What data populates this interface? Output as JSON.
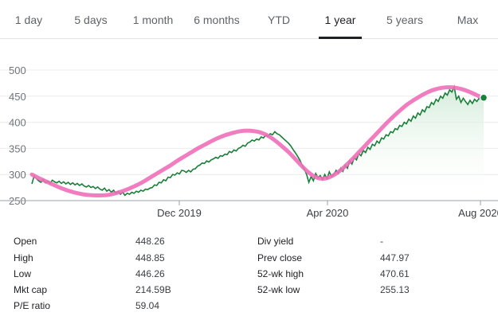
{
  "tabs": [
    {
      "label": "1 day",
      "active": false
    },
    {
      "label": "5 days",
      "active": false
    },
    {
      "label": "1 month",
      "active": false
    },
    {
      "label": "6 months",
      "active": false
    },
    {
      "label": "YTD",
      "active": false
    },
    {
      "label": "1 year",
      "active": true
    },
    {
      "label": "5 years",
      "active": false
    },
    {
      "label": "Max",
      "active": false
    }
  ],
  "chart_data": {
    "type": "line",
    "x_tick_labels": [
      "Dec 2019",
      "Apr 2020",
      "Aug 2020"
    ],
    "y_ticks": [
      250,
      300,
      350,
      400,
      450,
      500
    ],
    "ylim": [
      250,
      500
    ],
    "grid": true,
    "line_color": "#188038",
    "fill_color": "#e6f4ea",
    "overlay_color": "#f06eb8",
    "series": [
      {
        "values": [
          282,
          297,
          292,
          288,
          285,
          291,
          284,
          287,
          283,
          289,
          286,
          284,
          287,
          283,
          286,
          282,
          285,
          281,
          284,
          280,
          283,
          279,
          282,
          278,
          276,
          279,
          275,
          277,
          273,
          276,
          272,
          270,
          274,
          268,
          271,
          266,
          270,
          264,
          268,
          262,
          266,
          260,
          264,
          262,
          266,
          264,
          268,
          266,
          270,
          268,
          272,
          271,
          274,
          275,
          280,
          279,
          285,
          284,
          290,
          288,
          295,
          294,
          300,
          299,
          303,
          301,
          308,
          307,
          304,
          308,
          305,
          310,
          311,
          316,
          318,
          322,
          321,
          326,
          324,
          328,
          330,
          333,
          331,
          336,
          335,
          339,
          338,
          344,
          342,
          347,
          345,
          350,
          352,
          356,
          354,
          360,
          362,
          366,
          364,
          368,
          366,
          372,
          370,
          375,
          373,
          378,
          376,
          382,
          378,
          376,
          372,
          368,
          364,
          360,
          355,
          348,
          342,
          335,
          328,
          318,
          310,
          300,
          285,
          296,
          288,
          302,
          294,
          298,
          290,
          300,
          292,
          305,
          296,
          300,
          308,
          302,
          312,
          306,
          318,
          312,
          326,
          320,
          332,
          328,
          340,
          336,
          346,
          342,
          352,
          348,
          358,
          355,
          364,
          360,
          370,
          368,
          376,
          374,
          382,
          380,
          388,
          386,
          394,
          392,
          400,
          397,
          406,
          402,
          412,
          408,
          418,
          414,
          424,
          420,
          430,
          428,
          438,
          434,
          444,
          440,
          450,
          446,
          456,
          452,
          462,
          458,
          468,
          444,
          450,
          438,
          446,
          440,
          434,
          442,
          436,
          444,
          440,
          446,
          442,
          447
        ]
      },
      {
        "values": [
          300,
          293,
          287,
          281,
          275,
          270,
          266,
          263,
          261,
          260,
          260,
          261,
          264,
          268,
          273,
          279,
          286,
          294,
          302,
          310,
          318,
          327,
          335,
          343,
          351,
          358,
          365,
          371,
          376,
          380,
          383,
          384,
          383,
          380,
          374,
          365,
          354,
          342,
          328,
          314,
          302,
          294,
          292,
          296,
          304,
          315,
          328,
          342,
          356,
          370,
          384,
          398,
          411,
          423,
          434,
          443,
          451,
          458,
          463,
          466,
          467,
          466,
          463,
          458,
          452,
          446
        ]
      }
    ]
  },
  "stats": {
    "open_label": "Open",
    "open_value": "448.26",
    "high_label": "High",
    "high_value": "448.85",
    "low_label": "Low",
    "low_value": "446.26",
    "mktcap_label": "Mkt cap",
    "mktcap_value": "214.59B",
    "pe_label": "P/E ratio",
    "pe_value": "59.04",
    "divyield_label": "Div yield",
    "divyield_value": "-",
    "prevclose_label": "Prev close",
    "prevclose_value": "447.97",
    "wkhigh_label": "52-wk high",
    "wkhigh_value": "470.61",
    "wklow_label": "52-wk low",
    "wklow_value": "255.13"
  }
}
